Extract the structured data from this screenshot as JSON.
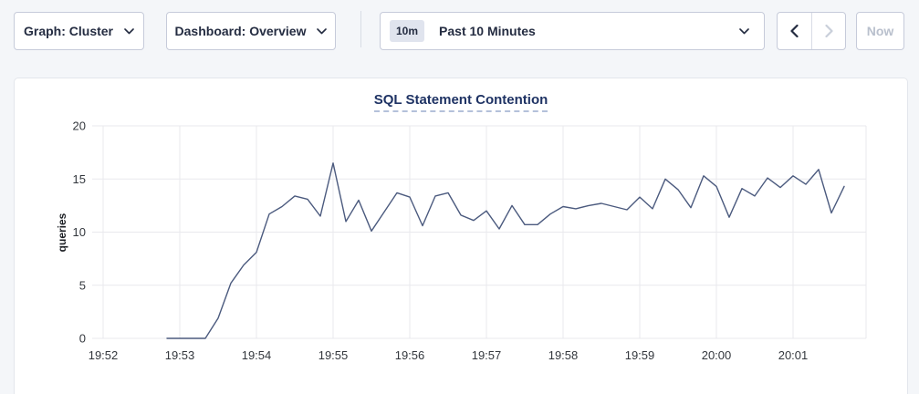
{
  "toolbar": {
    "graph_dropdown_label": "Graph: Cluster",
    "dashboard_dropdown_label": "Dashboard: Overview",
    "time_selector": {
      "badge": "10m",
      "label": "Past 10 Minutes"
    },
    "now_label": "Now"
  },
  "colors": {
    "accent_text": "#242c41",
    "disabled_text": "#b9c0cd",
    "title_text": "#1f3364",
    "line": "#4b5a7e",
    "grid": "#e9e9ed",
    "axis_text": "#33373d"
  },
  "chart_data": {
    "type": "line",
    "title": "SQL Statement Contention",
    "ylabel": "queries",
    "ylim": [
      0,
      20
    ],
    "yticks": [
      0,
      5,
      10,
      15,
      20
    ],
    "x_ticks": [
      "19:52",
      "19:53",
      "19:54",
      "19:55",
      "19:56",
      "19:57",
      "19:58",
      "19:59",
      "20:00",
      "20:01"
    ],
    "grid": true,
    "legend": "none",
    "series": [
      {
        "name": "queries",
        "start_time": "19:52:50",
        "interval_sec": 10,
        "values": [
          0,
          0,
          0,
          0,
          1.9,
          5.2,
          6.9,
          8.1,
          11.7,
          12.4,
          13.4,
          13.1,
          11.5,
          16.5,
          11,
          13,
          10.1,
          11.9,
          13.7,
          13.3,
          10.6,
          13.4,
          13.7,
          11.6,
          11.1,
          12,
          10.3,
          12.5,
          10.7,
          10.7,
          11.7,
          12.4,
          12.2,
          12.5,
          12.7,
          12.4,
          12.1,
          13.3,
          12.2,
          15,
          14,
          12.3,
          15.3,
          14.3,
          11.4,
          14.1,
          13.4,
          15.1,
          14.2,
          15.3,
          14.5,
          15.9,
          11.8,
          14.3
        ]
      }
    ]
  }
}
